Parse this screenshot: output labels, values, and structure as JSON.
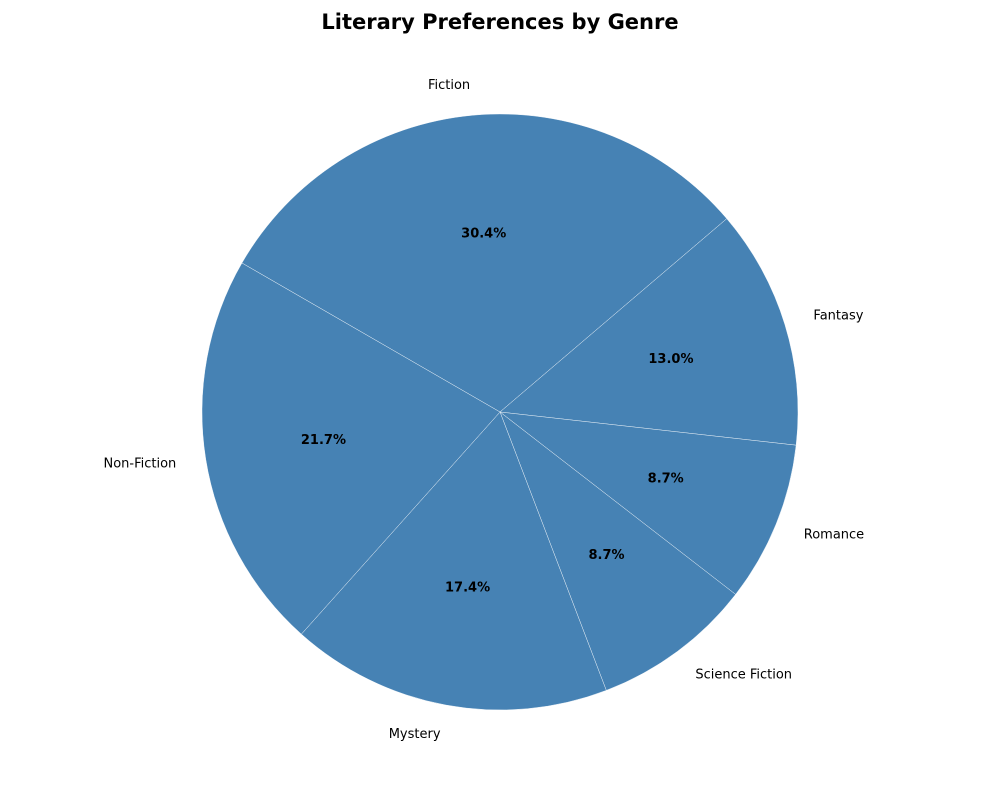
{
  "chart_data": {
    "type": "pie",
    "title": "Literary Preferences by Genre",
    "categories": [
      "Fiction",
      "Fantasy",
      "Romance",
      "Science Fiction",
      "Mystery",
      "Non-Fiction"
    ],
    "values": [
      30.4,
      13.0,
      8.7,
      8.7,
      17.4,
      21.7
    ],
    "value_labels": [
      "30.4%",
      "13.0%",
      "8.7%",
      "8.7%",
      "17.4%",
      "21.7%"
    ],
    "slice_color": "#4682B4",
    "edge_color": "#ffffff",
    "label_color": "#000000",
    "direction": "clockwise",
    "legend": "none"
  }
}
